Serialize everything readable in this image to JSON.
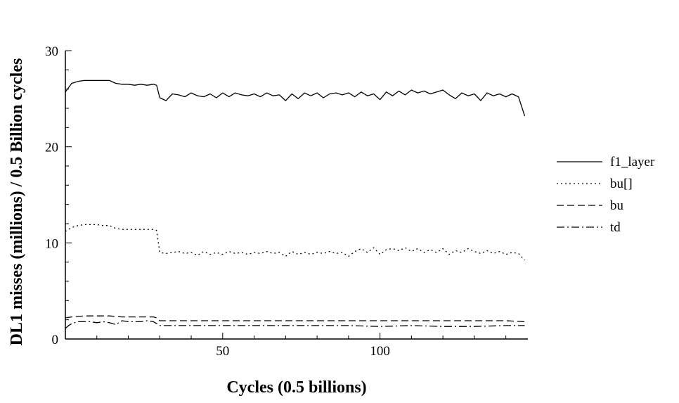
{
  "chart_data": {
    "type": "line",
    "title": "",
    "xlabel": "Cycles (0.5 billions)",
    "ylabel": "DL1 misses (millions) / 0.5 Billion cycles",
    "xlim": [
      0,
      147
    ],
    "ylim": [
      0,
      30
    ],
    "xticks": [
      50,
      100
    ],
    "yticks": [
      0,
      10,
      20,
      30
    ],
    "grid": false,
    "legend_position": "right",
    "line_color": "#000000",
    "series": [
      {
        "name": "f1_layer",
        "style": "solid",
        "x": [
          0,
          2,
          4,
          6,
          8,
          10,
          12,
          14,
          16,
          18,
          20,
          22,
          24,
          26,
          28,
          29,
          30,
          32,
          34,
          36,
          38,
          40,
          42,
          44,
          46,
          48,
          50,
          52,
          54,
          56,
          58,
          60,
          62,
          64,
          66,
          68,
          70,
          72,
          74,
          76,
          78,
          80,
          82,
          84,
          86,
          88,
          90,
          92,
          94,
          96,
          98,
          100,
          102,
          104,
          106,
          108,
          110,
          112,
          114,
          116,
          118,
          120,
          122,
          124,
          126,
          128,
          130,
          132,
          134,
          136,
          138,
          140,
          142,
          144,
          146
        ],
        "values": [
          25.7,
          26.6,
          26.8,
          26.9,
          26.9,
          26.9,
          26.9,
          26.9,
          26.6,
          26.5,
          26.5,
          26.4,
          26.5,
          26.4,
          26.5,
          26.4,
          25.1,
          24.8,
          25.5,
          25.4,
          25.2,
          25.6,
          25.3,
          25.2,
          25.5,
          25.1,
          25.6,
          25.2,
          25.6,
          25.4,
          25.3,
          25.5,
          25.2,
          25.6,
          25.3,
          25.4,
          24.8,
          25.5,
          25.0,
          25.6,
          25.3,
          25.6,
          25.1,
          25.5,
          25.6,
          25.4,
          25.6,
          25.2,
          25.7,
          25.3,
          25.5,
          24.9,
          25.7,
          25.3,
          25.8,
          25.4,
          25.9,
          25.6,
          25.8,
          25.5,
          25.7,
          25.9,
          25.4,
          25.0,
          25.6,
          25.3,
          25.5,
          24.8,
          25.6,
          25.3,
          25.5,
          25.2,
          25.5,
          25.2,
          23.2
        ]
      },
      {
        "name": "bu[]",
        "style": "dotted",
        "x": [
          0,
          2,
          4,
          6,
          8,
          10,
          12,
          14,
          16,
          18,
          20,
          22,
          24,
          26,
          28,
          29,
          30,
          32,
          34,
          36,
          38,
          40,
          42,
          44,
          46,
          48,
          50,
          52,
          54,
          56,
          58,
          60,
          62,
          64,
          66,
          68,
          70,
          72,
          74,
          76,
          78,
          80,
          82,
          84,
          86,
          88,
          90,
          92,
          94,
          96,
          98,
          100,
          102,
          104,
          106,
          108,
          110,
          112,
          114,
          116,
          118,
          120,
          122,
          124,
          126,
          128,
          130,
          132,
          134,
          136,
          138,
          140,
          142,
          144,
          146
        ],
        "values": [
          11.2,
          11.6,
          11.8,
          11.9,
          11.9,
          11.9,
          11.8,
          11.8,
          11.5,
          11.4,
          11.4,
          11.4,
          11.4,
          11.4,
          11.4,
          11.3,
          9.0,
          8.9,
          9.0,
          9.1,
          8.9,
          9.0,
          8.7,
          9.1,
          8.8,
          9.0,
          8.8,
          9.1,
          8.9,
          9.0,
          8.8,
          9.0,
          8.9,
          9.1,
          8.9,
          9.0,
          8.6,
          9.1,
          8.8,
          9.0,
          8.8,
          9.0,
          8.9,
          9.1,
          8.9,
          9.0,
          8.6,
          9.1,
          9.4,
          9.0,
          9.5,
          8.8,
          9.3,
          9.4,
          9.2,
          9.5,
          9.1,
          9.4,
          9.0,
          9.3,
          9.0,
          9.4,
          8.8,
          9.2,
          9.0,
          9.4,
          9.1,
          8.9,
          9.2,
          8.9,
          9.1,
          8.8,
          9.0,
          8.9,
          8.2
        ]
      },
      {
        "name": "bu",
        "style": "dashed",
        "x": [
          0,
          2,
          6,
          10,
          14,
          18,
          22,
          26,
          28,
          29,
          30,
          34,
          40,
          50,
          60,
          70,
          80,
          90,
          100,
          110,
          120,
          130,
          140,
          146
        ],
        "values": [
          2.2,
          2.3,
          2.4,
          2.4,
          2.4,
          2.3,
          2.3,
          2.3,
          2.3,
          2.2,
          1.9,
          1.9,
          1.9,
          1.9,
          1.9,
          1.9,
          1.9,
          1.9,
          1.9,
          1.9,
          1.9,
          1.9,
          1.9,
          1.8
        ]
      },
      {
        "name": "td",
        "style": "dashdot",
        "x": [
          0,
          1,
          2,
          4,
          6,
          8,
          10,
          12,
          14,
          16,
          18,
          20,
          22,
          24,
          26,
          28,
          29,
          30,
          34,
          40,
          50,
          60,
          70,
          80,
          90,
          100,
          110,
          120,
          130,
          140,
          146
        ],
        "values": [
          1.1,
          1.4,
          1.6,
          1.8,
          1.8,
          1.8,
          1.7,
          1.8,
          1.7,
          1.5,
          1.9,
          1.8,
          1.8,
          1.8,
          1.9,
          1.8,
          1.6,
          1.4,
          1.4,
          1.4,
          1.4,
          1.4,
          1.4,
          1.4,
          1.4,
          1.3,
          1.4,
          1.3,
          1.3,
          1.4,
          1.4
        ]
      }
    ]
  }
}
